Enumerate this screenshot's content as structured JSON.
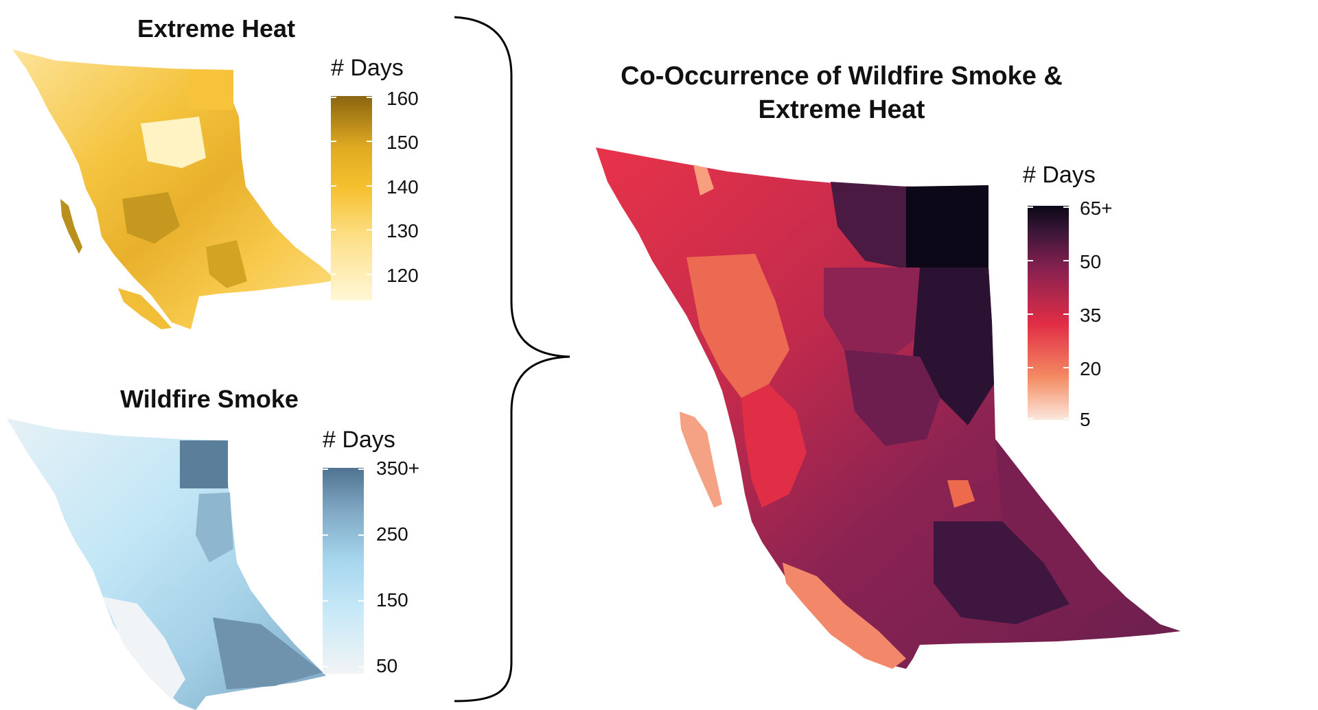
{
  "panels": {
    "heat": {
      "title": "Extreme Heat",
      "legend_title": "# Days",
      "ticks": [
        "160",
        "150",
        "140",
        "130",
        "120"
      ],
      "colors": [
        "#fff7d6",
        "#fde08a",
        "#f8c537",
        "#e9b22a",
        "#c8961c",
        "#8a6510"
      ]
    },
    "smoke": {
      "title": "Wildfire Smoke",
      "legend_title": "# Days",
      "ticks": [
        "350+",
        "250",
        "150",
        "50"
      ],
      "colors": [
        "#eef3f6",
        "#d6ecf6",
        "#b9e2f5",
        "#9fcde6",
        "#7fa9c6",
        "#4f7390"
      ]
    },
    "combined": {
      "title_line1": "Co-Occurrence of Wildfire Smoke &",
      "title_line2": "Extreme Heat",
      "legend_title": "# Days",
      "ticks": [
        "65+",
        "50",
        "35",
        "20",
        "5"
      ],
      "colors": [
        "#fbe3d4",
        "#f3906a",
        "#e3304a",
        "#b0264e",
        "#6d1e4e",
        "#2a1232",
        "#0b0716"
      ]
    }
  }
}
